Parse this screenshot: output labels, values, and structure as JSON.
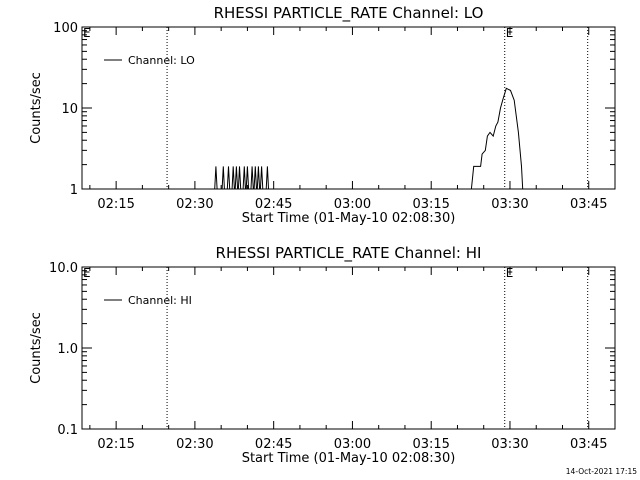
{
  "footer": {
    "timestamp": "14-Oct-2021 17:15"
  },
  "chart_data": [
    {
      "type": "line",
      "title": "RHESSI PARTICLE_RATE Channel: LO",
      "xlabel": "Start Time (01-May-10 02:08:30)",
      "ylabel": "Counts/sec",
      "x_units": "minutes after 02:08:30",
      "xlim": [
        0,
        101.5
      ],
      "ylim": [
        1,
        100
      ],
      "yscale": "log",
      "x_ticks": [
        {
          "x": 6.5,
          "label": "02:15"
        },
        {
          "x": 21.5,
          "label": "02:30"
        },
        {
          "x": 36.5,
          "label": "02:45"
        },
        {
          "x": 51.5,
          "label": "03:00"
        },
        {
          "x": 66.5,
          "label": "03:15"
        },
        {
          "x": 81.5,
          "label": "03:30"
        },
        {
          "x": 96.5,
          "label": "03:45"
        }
      ],
      "y_ticks": [
        {
          "y": 1,
          "label": "1"
        },
        {
          "y": 10,
          "label": "10"
        },
        {
          "y": 100,
          "label": "100"
        }
      ],
      "event_lines": [
        {
          "x": 16.2,
          "label": ""
        },
        {
          "x": 80.5,
          "label": "E"
        },
        {
          "x": 96.3,
          "label": ""
        }
      ],
      "corner_mark": "E",
      "grid": false,
      "legend_position": "top-left",
      "series": [
        {
          "name": "Channel: LO",
          "points": [
            [
              25.2,
              0.8
            ],
            [
              25.5,
              1.9
            ],
            [
              25.8,
              0.8
            ],
            [
              26.6,
              0.8
            ],
            [
              26.9,
              1.9
            ],
            [
              27.2,
              0.8
            ],
            [
              27.6,
              0.8
            ],
            [
              27.9,
              1.9
            ],
            [
              28.2,
              0.8
            ],
            [
              28.5,
              0.8
            ],
            [
              28.8,
              1.9
            ],
            [
              29.1,
              0.8
            ],
            [
              29.4,
              1.9
            ],
            [
              29.7,
              0.8
            ],
            [
              30.0,
              1.9
            ],
            [
              30.3,
              0.8
            ],
            [
              30.6,
              0.8
            ],
            [
              30.9,
              1.9
            ],
            [
              31.2,
              0.8
            ],
            [
              31.5,
              1.9
            ],
            [
              31.8,
              0.8
            ],
            [
              32.1,
              0.8
            ],
            [
              32.4,
              1.9
            ],
            [
              32.7,
              0.8
            ],
            [
              33.0,
              1.9
            ],
            [
              33.3,
              0.8
            ],
            [
              33.6,
              1.9
            ],
            [
              33.9,
              0.8
            ],
            [
              34.2,
              1.9
            ],
            [
              34.5,
              0.8
            ],
            [
              35.0,
              0.8
            ],
            [
              35.3,
              1.9
            ],
            [
              35.6,
              0.8
            ],
            [
              74.0,
              0.8
            ],
            [
              74.6,
              1.9
            ],
            [
              75.9,
              1.9
            ],
            [
              76.2,
              2.7
            ],
            [
              76.8,
              3.0
            ],
            [
              77.2,
              4.5
            ],
            [
              77.7,
              5.0
            ],
            [
              78.3,
              4.5
            ],
            [
              78.8,
              6.0
            ],
            [
              79.2,
              6.7
            ],
            [
              79.7,
              10.0
            ],
            [
              80.2,
              13.0
            ],
            [
              80.8,
              17.5
            ],
            [
              81.6,
              16.5
            ],
            [
              82.3,
              12.5
            ],
            [
              83.1,
              5.0
            ],
            [
              83.7,
              1.9
            ],
            [
              84.0,
              0.8
            ]
          ]
        }
      ]
    },
    {
      "type": "line",
      "title": "RHESSI PARTICLE_RATE Channel: HI",
      "xlabel": "Start Time (01-May-10 02:08:30)",
      "ylabel": "Counts/sec",
      "x_units": "minutes after 02:08:30",
      "xlim": [
        0,
        101.5
      ],
      "ylim": [
        0.1,
        10
      ],
      "yscale": "log",
      "x_ticks": [
        {
          "x": 6.5,
          "label": "02:15"
        },
        {
          "x": 21.5,
          "label": "02:30"
        },
        {
          "x": 36.5,
          "label": "02:45"
        },
        {
          "x": 51.5,
          "label": "03:00"
        },
        {
          "x": 66.5,
          "label": "03:15"
        },
        {
          "x": 81.5,
          "label": "03:30"
        },
        {
          "x": 96.5,
          "label": "03:45"
        }
      ],
      "y_ticks": [
        {
          "y": 0.1,
          "label": "0.1"
        },
        {
          "y": 1,
          "label": "1.0"
        },
        {
          "y": 10,
          "label": "10.0"
        }
      ],
      "event_lines": [
        {
          "x": 16.2,
          "label": ""
        },
        {
          "x": 80.5,
          "label": "E"
        },
        {
          "x": 96.3,
          "label": ""
        }
      ],
      "corner_mark": "E",
      "grid": false,
      "legend_position": "top-left",
      "series": [
        {
          "name": "Channel: HI",
          "points": []
        }
      ]
    }
  ]
}
